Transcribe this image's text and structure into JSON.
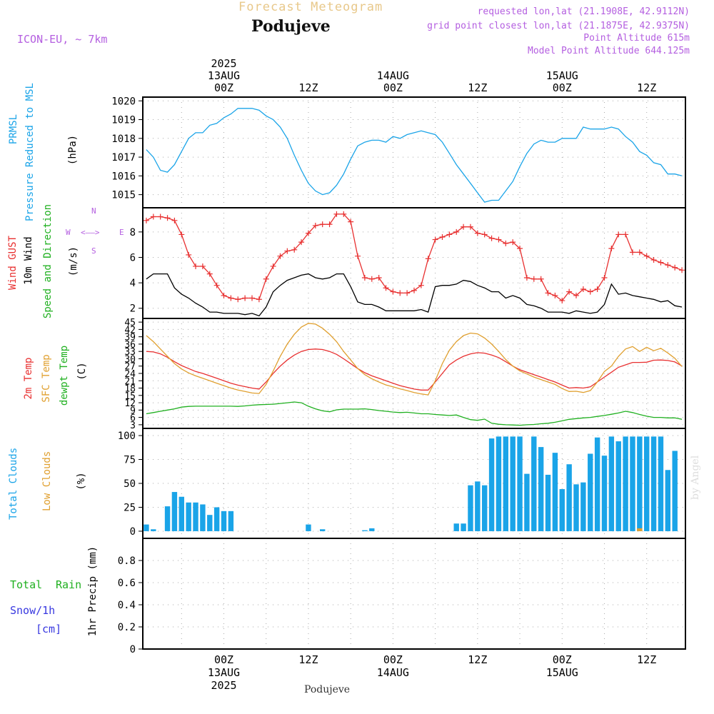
{
  "header": {
    "title": "Forecast Meteogram",
    "location": "Podujeve",
    "model": "ICON-EU, ~ 7km",
    "requested": "requested lon,lat (21.1908E, 42.9112N)",
    "gridpoint": "grid point closest lon,lat (21.1875E, 42.9375N)",
    "point_altitude": "Point Altitude 615m",
    "model_altitude": "Model Point Altitude 644.125m"
  },
  "footer": {
    "location": "Podujeve",
    "credit": "by Angel"
  },
  "time_axis": {
    "top_labels": [
      {
        "hour": 0,
        "lines": [
          "2025",
          "13AUG",
          "00Z"
        ]
      },
      {
        "hour": 12,
        "lines": [
          "12Z"
        ]
      },
      {
        "hour": 24,
        "lines": [
          "14AUG",
          "00Z"
        ]
      },
      {
        "hour": 36,
        "lines": [
          "12Z"
        ]
      },
      {
        "hour": 48,
        "lines": [
          "15AUG",
          "00Z"
        ]
      },
      {
        "hour": 60,
        "lines": [
          "12Z"
        ]
      }
    ],
    "bottom_labels": [
      {
        "hour": 0,
        "lines": [
          "00Z",
          "13AUG",
          "2025"
        ]
      },
      {
        "hour": 12,
        "lines": [
          "12Z"
        ]
      },
      {
        "hour": 24,
        "lines": [
          "00Z",
          "14AUG"
        ]
      },
      {
        "hour": 36,
        "lines": [
          "12Z"
        ]
      },
      {
        "hour": 48,
        "lines": [
          "00Z",
          "15AUG"
        ]
      },
      {
        "hour": 60,
        "lines": [
          "12Z"
        ]
      }
    ]
  },
  "panels": {
    "pressure": {
      "labels": [
        "PRMSL",
        "Pressure Reduced to MSL",
        "(hPa)"
      ],
      "colors": [
        "#1aa4e8",
        "#1aa4e8",
        "#000000"
      ]
    },
    "wind": {
      "labels": [
        "Wind GUST",
        "10m Wind",
        "Speed and Direction",
        "(m/s)"
      ],
      "colors": [
        "#e83030",
        "#000000",
        "#20b020",
        "#000000"
      ],
      "compass": [
        "N",
        "W",
        "E",
        "S"
      ]
    },
    "temp": {
      "labels": [
        "2m Temp",
        "SFC Temp",
        "dewpt Temp",
        "(C)"
      ],
      "colors": [
        "#e83030",
        "#e0a030",
        "#20b020",
        "#000000"
      ]
    },
    "clouds": {
      "labels": [
        "Total Clouds",
        "Low Clouds",
        "(%)"
      ],
      "colors": [
        "#1aa4e8",
        "#e0a030",
        "#000000"
      ]
    },
    "precip": {
      "labels": [
        "Total",
        "Rain",
        "Snow/1h",
        "[cm]",
        "1hr Precip (mm)"
      ],
      "colors": [
        "#20b020",
        "#20b020",
        "#3838e0",
        "#3838e0",
        "#000000"
      ]
    }
  },
  "chart_data": [
    {
      "type": "line",
      "title": "PRMSL Pressure Reduced to MSL",
      "ylabel": "(hPa)",
      "ylim": [
        1014.3,
        1020.2
      ],
      "yticks": [
        1015,
        1016,
        1017,
        1018,
        1019,
        1020
      ],
      "x_hours": [
        -11,
        -10,
        -9,
        -8,
        -7,
        -6,
        -5,
        -4,
        -3,
        -2,
        -1,
        0,
        1,
        2,
        3,
        4,
        5,
        6,
        7,
        8,
        9,
        10,
        11,
        12,
        13,
        14,
        15,
        16,
        17,
        18,
        19,
        20,
        21,
        22,
        23,
        24,
        25,
        26,
        27,
        28,
        29,
        30,
        31,
        32,
        33,
        34,
        35,
        36,
        37,
        38,
        39,
        40,
        41,
        42,
        43,
        44,
        45,
        46,
        47,
        48,
        49,
        50,
        51,
        52,
        53,
        54,
        55,
        56,
        57,
        58,
        59,
        60,
        61,
        62,
        63,
        64,
        65
      ],
      "series": [
        {
          "values": [
            1017.4,
            1017.0,
            1016.3,
            1016.2,
            1016.6,
            1017.3,
            1018.0,
            1018.3,
            1018.3,
            1018.7,
            1018.8,
            1019.1,
            1019.3,
            1019.6,
            1019.6,
            1019.6,
            1019.5,
            1019.2,
            1019.0,
            1018.6,
            1018.0,
            1017.1,
            1016.3,
            1015.6,
            1015.2,
            1015.0,
            1015.1,
            1015.5,
            1016.1,
            1016.9,
            1017.6,
            1017.8,
            1017.9,
            1017.9,
            1017.8,
            1018.1,
            1018.0,
            1018.2,
            1018.3,
            1018.4,
            1018.3,
            1018.2,
            1017.8,
            1017.2,
            1016.6,
            1016.1,
            1015.6,
            1015.1,
            1014.6,
            1014.7,
            1014.7,
            1015.2,
            1015.7,
            1016.5,
            1017.2,
            1017.7,
            1017.9,
            1017.8,
            1017.8,
            1018.0,
            1018.0,
            1018.0,
            1018.6,
            1018.5,
            1018.5,
            1018.5,
            1018.6,
            1018.5,
            1018.1,
            1017.8,
            1017.3,
            1017.1,
            1016.7,
            1016.6,
            1016.1,
            1016.1,
            1016.0
          ],
          "color": "#1aa4e8"
        }
      ]
    },
    {
      "type": "line",
      "title": "Wind GUST 10m Wind Speed and Direction",
      "ylabel": "(m/s)",
      "ylim": [
        1.2,
        9.9
      ],
      "yticks": [
        2,
        4,
        6,
        8
      ],
      "x_hours": [
        -11,
        -10,
        -9,
        -8,
        -7,
        -6,
        -5,
        -4,
        -3,
        -2,
        -1,
        0,
        1,
        2,
        3,
        4,
        5,
        6,
        7,
        8,
        9,
        10,
        11,
        12,
        13,
        14,
        15,
        16,
        17,
        18,
        19,
        20,
        21,
        22,
        23,
        24,
        25,
        26,
        27,
        28,
        29,
        30,
        31,
        32,
        33,
        34,
        35,
        36,
        37,
        38,
        39,
        40,
        41,
        42,
        43,
        44,
        45,
        46,
        47,
        48,
        49,
        50,
        51,
        52,
        53,
        54,
        55,
        56,
        57,
        58,
        59,
        60,
        61,
        62,
        63,
        64,
        65
      ],
      "series": [
        {
          "name": "Wind GUST",
          "values": [
            8.9,
            9.2,
            9.2,
            9.1,
            8.9,
            7.8,
            6.2,
            5.3,
            5.3,
            4.7,
            3.8,
            3.0,
            2.8,
            2.7,
            2.8,
            2.8,
            2.7,
            4.3,
            5.3,
            6.1,
            6.5,
            6.6,
            7.2,
            7.9,
            8.5,
            8.6,
            8.6,
            9.4,
            9.4,
            8.8,
            6.1,
            4.4,
            4.3,
            4.4,
            3.6,
            3.3,
            3.2,
            3.2,
            3.4,
            3.8,
            5.9,
            7.4,
            7.6,
            7.8,
            8.0,
            8.4,
            8.4,
            7.9,
            7.8,
            7.5,
            7.4,
            7.1,
            7.2,
            6.7,
            4.4,
            4.3,
            4.3,
            3.2,
            3.0,
            2.6,
            3.3,
            3.0,
            3.5,
            3.3,
            3.5,
            4.4,
            6.7,
            7.8,
            7.8,
            6.4,
            6.4,
            6.1,
            5.8,
            5.6,
            5.4,
            5.2,
            5.0
          ],
          "color": "#e83030"
        },
        {
          "name": "10m Wind",
          "values": [
            4.3,
            4.7,
            4.7,
            4.7,
            3.6,
            3.1,
            2.8,
            2.4,
            2.1,
            1.7,
            1.7,
            1.6,
            1.6,
            1.6,
            1.5,
            1.6,
            1.4,
            2.1,
            3.3,
            3.8,
            4.2,
            4.4,
            4.6,
            4.7,
            4.4,
            4.3,
            4.4,
            4.7,
            4.7,
            3.7,
            2.5,
            2.3,
            2.3,
            2.1,
            1.8,
            1.8,
            1.8,
            1.8,
            1.8,
            1.9,
            1.7,
            3.7,
            3.8,
            3.8,
            3.9,
            4.2,
            4.1,
            3.8,
            3.6,
            3.3,
            3.3,
            2.8,
            3.0,
            2.8,
            2.3,
            2.2,
            2.0,
            1.7,
            1.7,
            1.7,
            1.6,
            1.8,
            1.7,
            1.6,
            1.7,
            2.3,
            3.9,
            3.1,
            3.2,
            3.0,
            2.9,
            2.8,
            2.7,
            2.5,
            2.6,
            2.2,
            2.1
          ],
          "color": "#000000"
        }
      ]
    },
    {
      "type": "line",
      "title": "2m Temp SFC Temp dewpt Temp",
      "ylabel": "(C)",
      "ylim": [
        1.5,
        46.5
      ],
      "yticks": [
        3,
        6,
        9,
        12,
        15,
        18,
        21,
        24,
        27,
        30,
        33,
        36,
        39,
        42,
        45
      ],
      "x_hours": [
        -11,
        -10,
        -9,
        -8,
        -7,
        -6,
        -5,
        -4,
        -3,
        -2,
        -1,
        0,
        1,
        2,
        3,
        4,
        5,
        6,
        7,
        8,
        9,
        10,
        11,
        12,
        13,
        14,
        15,
        16,
        17,
        18,
        19,
        20,
        21,
        22,
        23,
        24,
        25,
        26,
        27,
        28,
        29,
        30,
        31,
        32,
        33,
        34,
        35,
        36,
        37,
        38,
        39,
        40,
        41,
        42,
        43,
        44,
        45,
        46,
        47,
        48,
        49,
        50,
        51,
        52,
        53,
        54,
        55,
        56,
        57,
        58,
        59,
        60,
        61,
        62,
        63,
        64,
        65
      ],
      "series": [
        {
          "name": "2m Temp",
          "values": [
            33.0,
            32.8,
            32.0,
            30.6,
            28.8,
            27.2,
            26.0,
            24.8,
            24.0,
            23.0,
            22.0,
            21.0,
            20.0,
            19.2,
            18.6,
            18.0,
            17.6,
            20.5,
            24.0,
            27.0,
            29.5,
            31.5,
            33.0,
            33.8,
            34.0,
            33.8,
            33.0,
            31.8,
            30.0,
            28.0,
            26.0,
            24.3,
            23.0,
            22.0,
            21.0,
            20.0,
            19.0,
            18.3,
            17.6,
            17.2,
            17.2,
            20.5,
            24.0,
            27.5,
            29.5,
            31.0,
            32.0,
            32.5,
            32.3,
            31.5,
            30.5,
            28.8,
            27.0,
            25.5,
            24.5,
            23.5,
            22.5,
            21.5,
            20.5,
            19.2,
            18.0,
            18.2,
            18.0,
            18.5,
            20.5,
            22.5,
            24.5,
            26.5,
            27.5,
            28.5,
            28.5,
            28.6,
            29.4,
            29.5,
            29.3,
            28.7,
            27.0
          ],
          "color": "#e83030"
        },
        {
          "name": "SFC Temp",
          "values": [
            39.5,
            37.0,
            34.0,
            31.0,
            28.0,
            25.8,
            24.2,
            23.0,
            22.0,
            21.0,
            20.0,
            19.0,
            18.0,
            17.2,
            16.6,
            16.0,
            15.8,
            19.5,
            25.0,
            31.0,
            36.0,
            40.0,
            43.0,
            44.5,
            44.2,
            42.5,
            40.0,
            37.0,
            33.0,
            29.5,
            26.0,
            23.5,
            21.8,
            20.5,
            19.3,
            18.5,
            17.7,
            17.0,
            16.2,
            15.6,
            15.2,
            21.0,
            28.0,
            33.5,
            37.0,
            39.5,
            40.5,
            40.2,
            38.5,
            36.0,
            33.0,
            29.7,
            27.0,
            25.0,
            23.8,
            22.5,
            21.5,
            20.5,
            19.5,
            17.8,
            16.6,
            16.7,
            16.2,
            17.0,
            20.5,
            24.8,
            27.0,
            31.0,
            34.0,
            35.0,
            33.0,
            34.7,
            33.3,
            34.3,
            32.4,
            30.2,
            26.8
          ],
          "color": "#e0a030"
        },
        {
          "name": "dewpt Temp",
          "values": [
            7.5,
            8.0,
            8.5,
            9.0,
            9.5,
            10.2,
            10.5,
            10.6,
            10.6,
            10.6,
            10.6,
            10.6,
            10.6,
            10.5,
            10.7,
            11.0,
            11.2,
            11.3,
            11.4,
            11.7,
            12.0,
            12.3,
            12.0,
            10.6,
            9.5,
            8.7,
            8.3,
            9.1,
            9.4,
            9.4,
            9.4,
            9.5,
            9.2,
            8.8,
            8.5,
            8.2,
            8.0,
            8.1,
            7.8,
            7.5,
            7.5,
            7.2,
            7.0,
            6.8,
            7.0,
            6.0,
            5.1,
            4.8,
            5.3,
            3.6,
            3.2,
            3.0,
            2.9,
            2.8,
            3.0,
            3.1,
            3.4,
            3.6,
            4.0,
            4.6,
            5.2,
            5.5,
            5.8,
            6.0,
            6.4,
            6.8,
            7.3,
            7.8,
            8.5,
            8.0,
            7.2,
            6.5,
            6.0,
            6.0,
            5.8,
            5.8,
            5.2
          ],
          "color": "#20b020"
        }
      ]
    },
    {
      "type": "bar",
      "title": "Total Clouds Low Clouds",
      "ylabel": "(%)",
      "ylim": [
        -7.5,
        107.5
      ],
      "yticks": [
        0,
        25,
        50,
        75,
        100
      ],
      "x_hours": [
        -11,
        -10,
        -9,
        -8,
        -7,
        -6,
        -5,
        -4,
        -3,
        -2,
        -1,
        0,
        1,
        2,
        3,
        4,
        5,
        6,
        7,
        8,
        9,
        10,
        11,
        12,
        13,
        14,
        15,
        16,
        17,
        18,
        19,
        20,
        21,
        22,
        23,
        24,
        25,
        26,
        27,
        28,
        29,
        30,
        31,
        32,
        33,
        34,
        35,
        36,
        37,
        38,
        39,
        40,
        41,
        42,
        43,
        44,
        45,
        46,
        47,
        48,
        49,
        50,
        51,
        52,
        53,
        54,
        55,
        56,
        57,
        58,
        59,
        60,
        61,
        62,
        63,
        64,
        65
      ],
      "series": [
        {
          "name": "Total Clouds",
          "values": [
            7,
            2,
            0,
            26,
            41,
            36,
            30,
            30,
            28,
            17,
            25,
            21,
            21,
            0,
            0,
            0,
            0,
            0,
            0,
            0,
            0,
            0,
            0,
            7,
            0,
            2,
            0,
            0,
            0,
            0,
            0,
            1,
            3,
            0,
            0,
            0,
            0,
            0,
            0,
            0,
            0,
            0,
            0,
            0,
            8,
            8,
            48,
            52,
            48,
            97,
            99,
            99,
            99,
            99,
            60,
            99,
            88,
            59,
            82,
            44,
            70,
            49,
            51,
            81,
            98,
            79,
            99,
            94,
            99,
            99,
            99,
            99,
            99,
            99,
            64,
            84,
            0
          ],
          "color": "#1aa4e8"
        },
        {
          "name": "Low Clouds",
          "values": [
            0,
            0,
            0,
            0,
            0,
            0,
            0,
            0,
            0,
            0,
            0,
            0,
            0,
            0,
            0,
            0,
            0,
            0,
            0,
            0,
            0,
            0,
            0,
            0,
            0,
            0,
            0,
            0,
            0,
            0,
            0,
            0,
            0,
            0,
            0,
            0,
            0,
            0,
            0,
            0,
            0,
            0,
            0,
            0,
            0,
            0,
            0,
            0,
            0,
            0,
            0,
            0,
            0,
            0,
            0,
            0,
            0,
            0,
            0,
            0,
            0,
            0,
            0,
            0,
            0,
            0,
            0,
            0,
            0,
            0,
            3,
            0,
            0,
            0,
            0,
            0,
            0
          ],
          "color": "#e0a030"
        }
      ]
    },
    {
      "type": "line",
      "title": "Total Rain Snow/1h [cm]",
      "ylabel": "1hr Precip (mm)",
      "ylim": [
        0,
        1.0
      ],
      "yticks": [
        0,
        0.2,
        0.4,
        0.6,
        0.8
      ],
      "x_hours": [
        -11,
        65
      ],
      "series": [
        {
          "name": "Total Rain",
          "values": [
            0,
            0
          ],
          "color": "#20b020"
        },
        {
          "name": "Snow/1h",
          "values": [
            0,
            0
          ],
          "color": "#3838e0"
        }
      ]
    }
  ]
}
